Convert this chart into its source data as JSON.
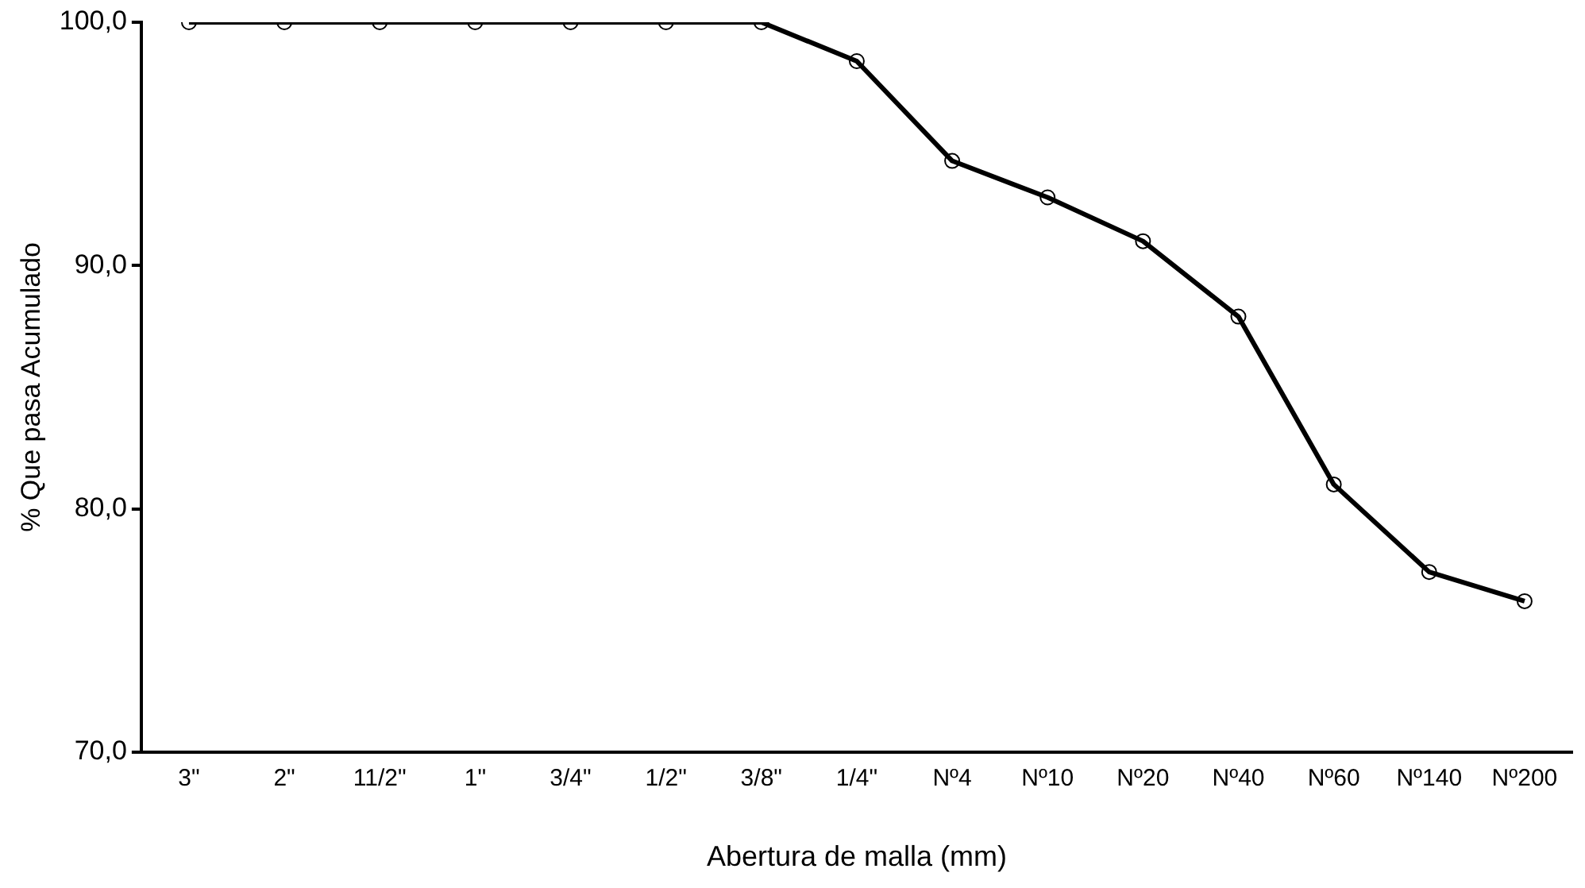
{
  "chart_data": {
    "type": "line",
    "xlabel": "Abertura de malla (mm)",
    "ylabel": "% Que pasa Acumulado",
    "categories": [
      "3\"",
      "2\"",
      "11/2\"",
      "1\"",
      "3/4\"",
      "1/2\"",
      "3/8\"",
      "1/4\"",
      "Nº4",
      "Nº10",
      "Nº20",
      "Nº40",
      "Nº60",
      "Nº140",
      "Nº200"
    ],
    "series": [
      {
        "color": "#000000",
        "values": [
          100,
          100,
          100,
          100,
          100,
          100,
          100,
          98.4,
          94.3,
          92.8,
          91.0,
          87.9,
          81.0,
          77.4,
          76.2
        ]
      }
    ],
    "ylim": [
      70,
      100
    ],
    "yticks": [
      {
        "value": 70,
        "label": "70,0"
      },
      {
        "value": 80,
        "label": "80,0"
      },
      {
        "value": 90,
        "label": "90,0"
      },
      {
        "value": 100,
        "label": "100,0"
      }
    ],
    "grid": false,
    "legend": false,
    "marker": "circle",
    "line_style": "solid"
  }
}
